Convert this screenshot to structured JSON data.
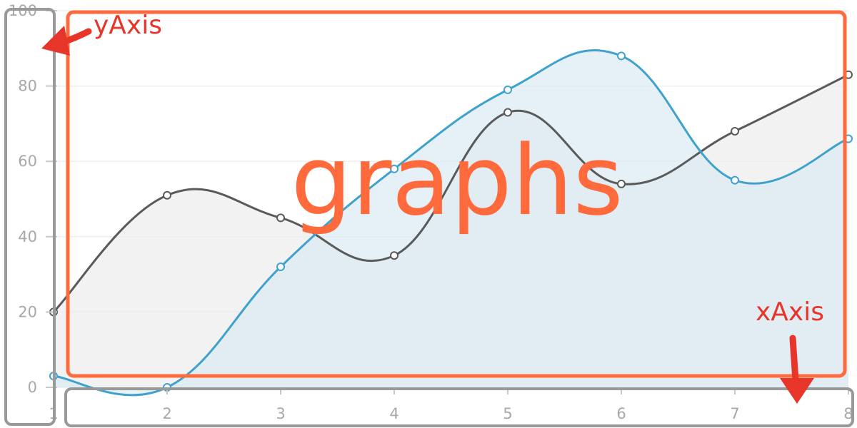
{
  "chart_data": {
    "type": "area",
    "x": [
      1,
      2,
      3,
      4,
      5,
      6,
      7,
      8
    ],
    "xticks": [
      "1",
      "2",
      "3",
      "4",
      "5",
      "6",
      "7",
      "8"
    ],
    "yticks": [
      "0",
      "20",
      "40",
      "60",
      "80",
      "100"
    ],
    "ylim": [
      0,
      100
    ],
    "xlim": [
      1,
      8
    ],
    "grid": true,
    "series": [
      {
        "color": "#5a5a5a",
        "fill": "#ececec",
        "values": [
          20,
          51,
          45,
          35,
          73,
          54,
          68,
          83
        ]
      },
      {
        "color": "#3fa2cc",
        "fill": "#dbe9f4",
        "values": [
          3,
          0,
          32,
          58,
          79,
          88,
          55,
          66
        ]
      }
    ]
  },
  "annotations": {
    "yaxis": "yAxis",
    "xaxis": "xAxis",
    "graphs": "graphs"
  },
  "colors": {
    "annotation_box": "#ff6a3d",
    "annotation_arrow": "#e8352a",
    "axis_box": "#999999"
  }
}
